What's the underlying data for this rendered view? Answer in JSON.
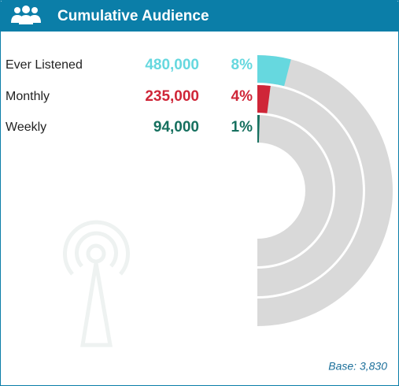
{
  "chart_data": {
    "type": "radial-bar",
    "title": "Cumulative Audience",
    "categories": [
      "Ever Listened",
      "Monthly",
      "Weekly"
    ],
    "values": [
      480000,
      235000,
      94000
    ],
    "value_labels": [
      "480,000",
      "235,000",
      "94,000"
    ],
    "shares": [
      8,
      4,
      1
    ],
    "share_labels": [
      "8%",
      "4%",
      "1%"
    ],
    "colors": [
      "#66d8df",
      "#cf2638",
      "#16705f"
    ],
    "ylim": [
      0,
      100
    ],
    "base_label": "Base: 3,830"
  }
}
